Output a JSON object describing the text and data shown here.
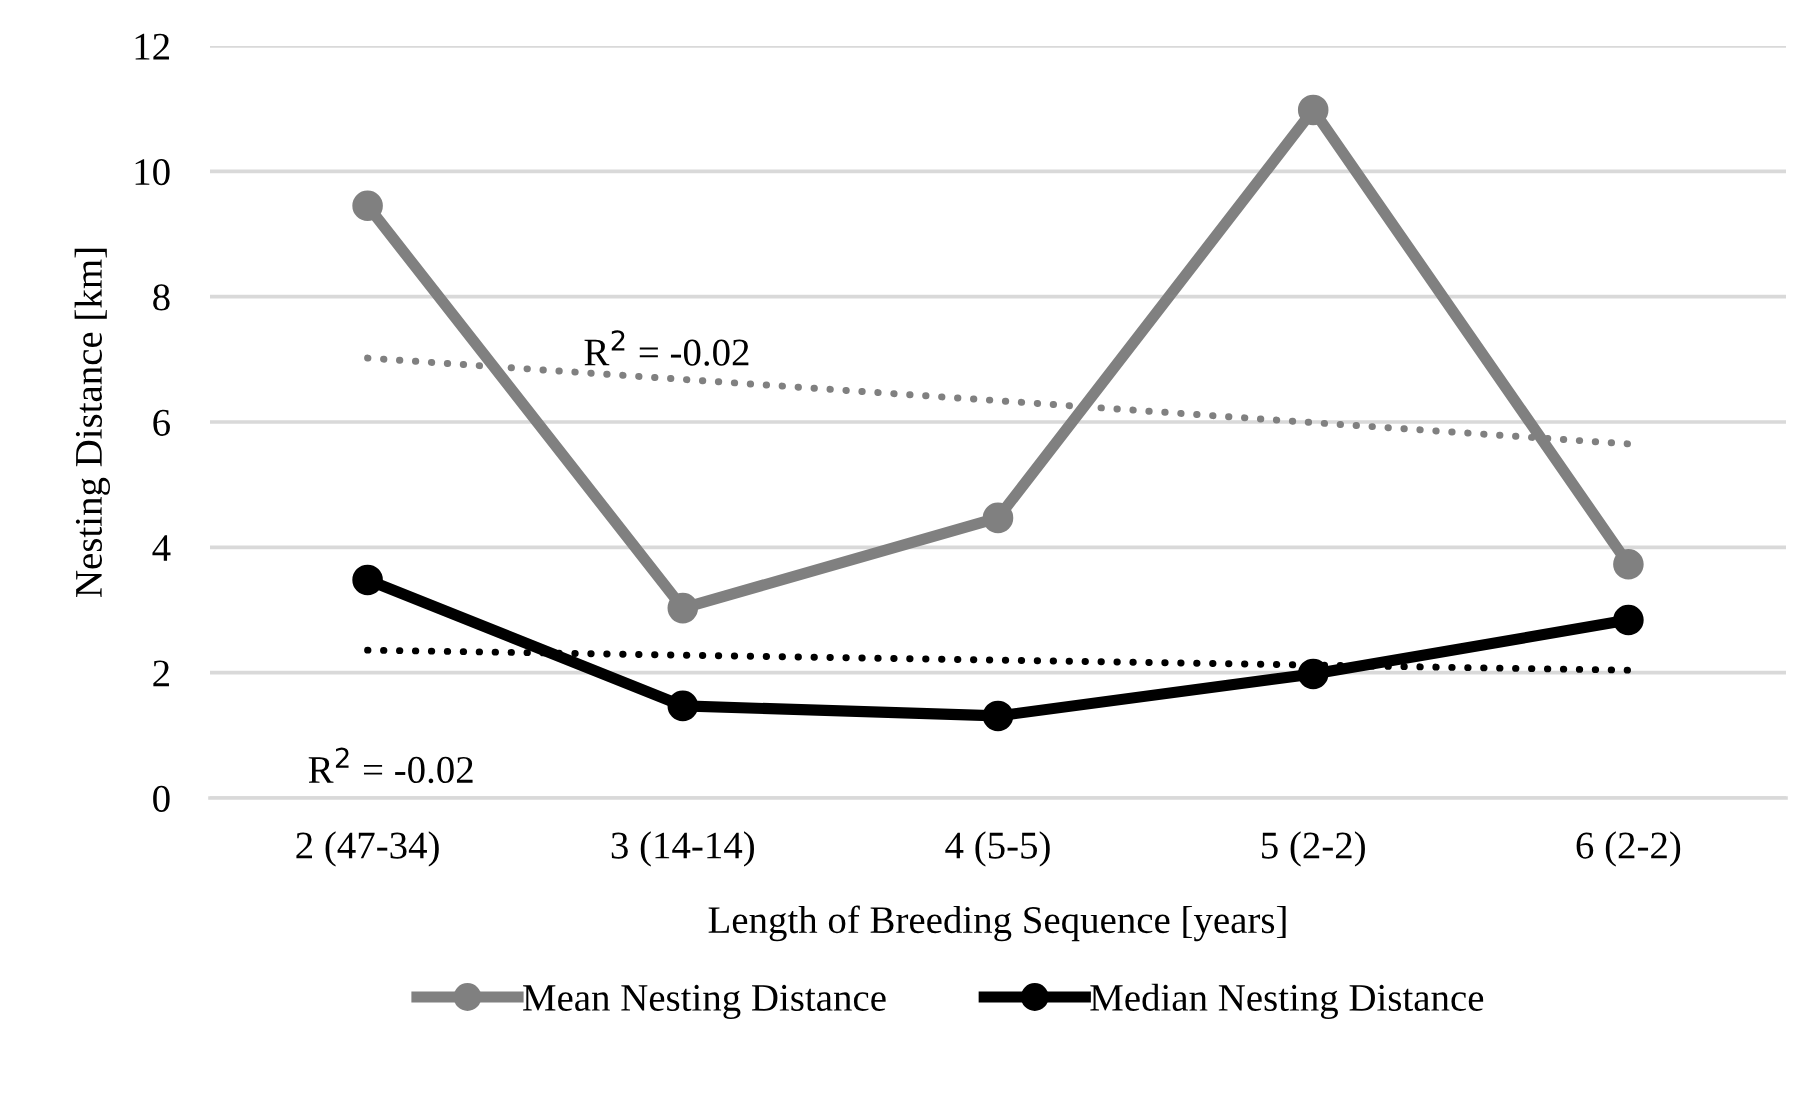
{
  "chart_data": {
    "type": "line",
    "xlabel": "Length of Breeding Sequence [years]",
    "ylabel": "Nesting Distance [km]",
    "categories": [
      "2 (47-34)",
      "3 (14-14)",
      "4 (5-5)",
      "5 (2-2)",
      "6 (2-2)"
    ],
    "series": [
      {
        "name": "Mean Nesting Distance",
        "color": "#808080",
        "values": [
          9.45,
          3.03,
          4.47,
          10.98,
          3.73
        ],
        "marker": "circle",
        "line_style": "solid"
      },
      {
        "name": "Median Nesting Distance",
        "color": "#000000",
        "values": [
          3.48,
          1.47,
          1.31,
          1.98,
          2.84
        ],
        "marker": "circle",
        "line_style": "solid"
      },
      {
        "color": "#808080",
        "values": [
          7.02,
          6.68,
          6.34,
          5.99,
          5.65
        ],
        "marker": "none",
        "line_style": "dotted"
      },
      {
        "color": "#000000",
        "values": [
          2.36,
          2.28,
          2.2,
          2.12,
          2.04
        ],
        "marker": "none",
        "line_style": "dotted"
      }
    ],
    "annotations": [
      "R$^{2}$ = -0.02",
      "R$^{2}$ = -0.02"
    ],
    "ylim": [
      0,
      12
    ],
    "yticks": [
      0,
      2,
      4,
      6,
      8,
      10,
      12
    ],
    "grid": "y",
    "legend": "bottom"
  }
}
